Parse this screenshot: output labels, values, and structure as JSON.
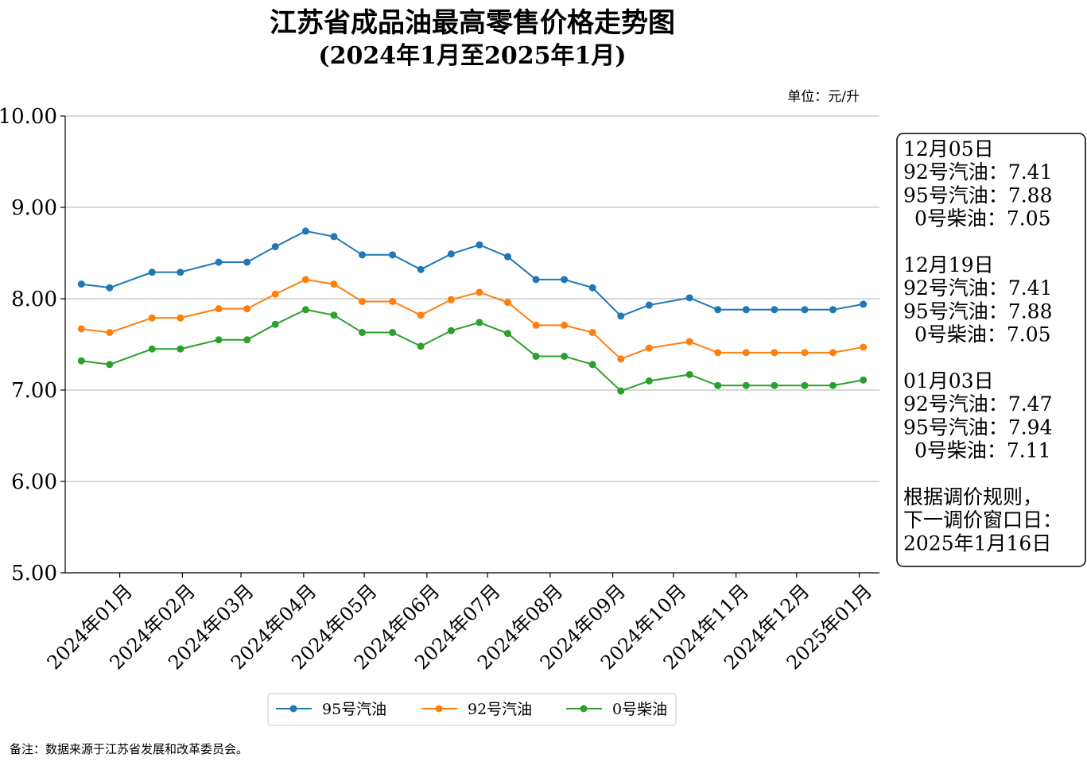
{
  "chart_data": {
    "type": "line",
    "title": "江苏省成品油最高零售价格走势图",
    "subtitle": "(2024年1月至2025年1月)",
    "unit_label": "单位：元/升",
    "ylim": [
      5.0,
      10.0
    ],
    "yticks": [
      "10.00",
      "9.00",
      "8.00",
      "7.00",
      "6.00",
      "5.00"
    ],
    "ytick_values": [
      10,
      9,
      8,
      7,
      6,
      5
    ],
    "grid": "horizontal",
    "legend_position": "bottom",
    "xticks": [
      {
        "label": "2024年01月",
        "date": "2024-01-01"
      },
      {
        "label": "2024年02月",
        "date": "2024-02-01"
      },
      {
        "label": "2024年03月",
        "date": "2024-03-01"
      },
      {
        "label": "2024年04月",
        "date": "2024-04-01"
      },
      {
        "label": "2024年05月",
        "date": "2024-05-01"
      },
      {
        "label": "2024年06月",
        "date": "2024-06-01"
      },
      {
        "label": "2024年07月",
        "date": "2024-07-01"
      },
      {
        "label": "2024年08月",
        "date": "2024-08-01"
      },
      {
        "label": "2024年09月",
        "date": "2024-09-01"
      },
      {
        "label": "2024年10月",
        "date": "2024-10-01"
      },
      {
        "label": "2024年11月",
        "date": "2024-11-01"
      },
      {
        "label": "2024年12月",
        "date": "2024-12-01"
      },
      {
        "label": "2025年01月",
        "date": "2025-01-01"
      }
    ],
    "x": [
      "2023-12-13",
      "2023-12-27",
      "2024-01-17",
      "2024-01-31",
      "2024-02-19",
      "2024-03-04",
      "2024-03-18",
      "2024-04-02",
      "2024-04-16",
      "2024-04-30",
      "2024-05-15",
      "2024-05-29",
      "2024-06-13",
      "2024-06-27",
      "2024-07-11",
      "2024-07-25",
      "2024-08-08",
      "2024-08-22",
      "2024-09-05",
      "2024-09-19",
      "2024-10-09",
      "2024-10-23",
      "2024-11-06",
      "2024-11-20",
      "2024-12-05",
      "2024-12-19",
      "2025-01-03"
    ],
    "series": [
      {
        "name": "95号汽油",
        "color": "#1f77b4",
        "values": [
          8.16,
          8.12,
          8.29,
          8.29,
          8.4,
          8.4,
          8.57,
          8.74,
          8.68,
          8.48,
          8.48,
          8.32,
          8.49,
          8.59,
          8.46,
          8.21,
          8.21,
          8.12,
          7.81,
          7.93,
          8.01,
          7.88,
          7.88,
          7.88,
          7.88,
          7.88,
          7.94
        ]
      },
      {
        "name": "92号汽油",
        "color": "#ff7f0e",
        "values": [
          7.67,
          7.63,
          7.79,
          7.79,
          7.89,
          7.89,
          8.05,
          8.21,
          8.16,
          7.97,
          7.97,
          7.82,
          7.99,
          8.07,
          7.96,
          7.71,
          7.71,
          7.63,
          7.34,
          7.46,
          7.53,
          7.41,
          7.41,
          7.41,
          7.41,
          7.41,
          7.47
        ]
      },
      {
        "name": "0号柴油",
        "color": "#2ca02c",
        "values": [
          7.32,
          7.28,
          7.45,
          7.45,
          7.55,
          7.55,
          7.72,
          7.88,
          7.82,
          7.63,
          7.63,
          7.48,
          7.65,
          7.74,
          7.62,
          7.37,
          7.37,
          7.28,
          6.99,
          7.1,
          7.17,
          7.05,
          7.05,
          7.05,
          7.05,
          7.05,
          7.11
        ]
      }
    ]
  },
  "info_box": {
    "lines": [
      "12月05日",
      "92号汽油：7.41",
      "95号汽油：7.88",
      "0号柴油：7.05",
      "",
      "12月19日",
      "92号汽油：7.41",
      "95号汽油：7.88",
      "0号柴油：7.05",
      "",
      "01月03日",
      "92号汽油：7.47",
      "95号汽油：7.94",
      "0号柴油：7.11",
      "",
      "根据调价规则，",
      "下一调价窗口日：",
      "2025年1月16日"
    ]
  },
  "footnote": "备注：数据来源于江苏省发展和改革委员会。"
}
